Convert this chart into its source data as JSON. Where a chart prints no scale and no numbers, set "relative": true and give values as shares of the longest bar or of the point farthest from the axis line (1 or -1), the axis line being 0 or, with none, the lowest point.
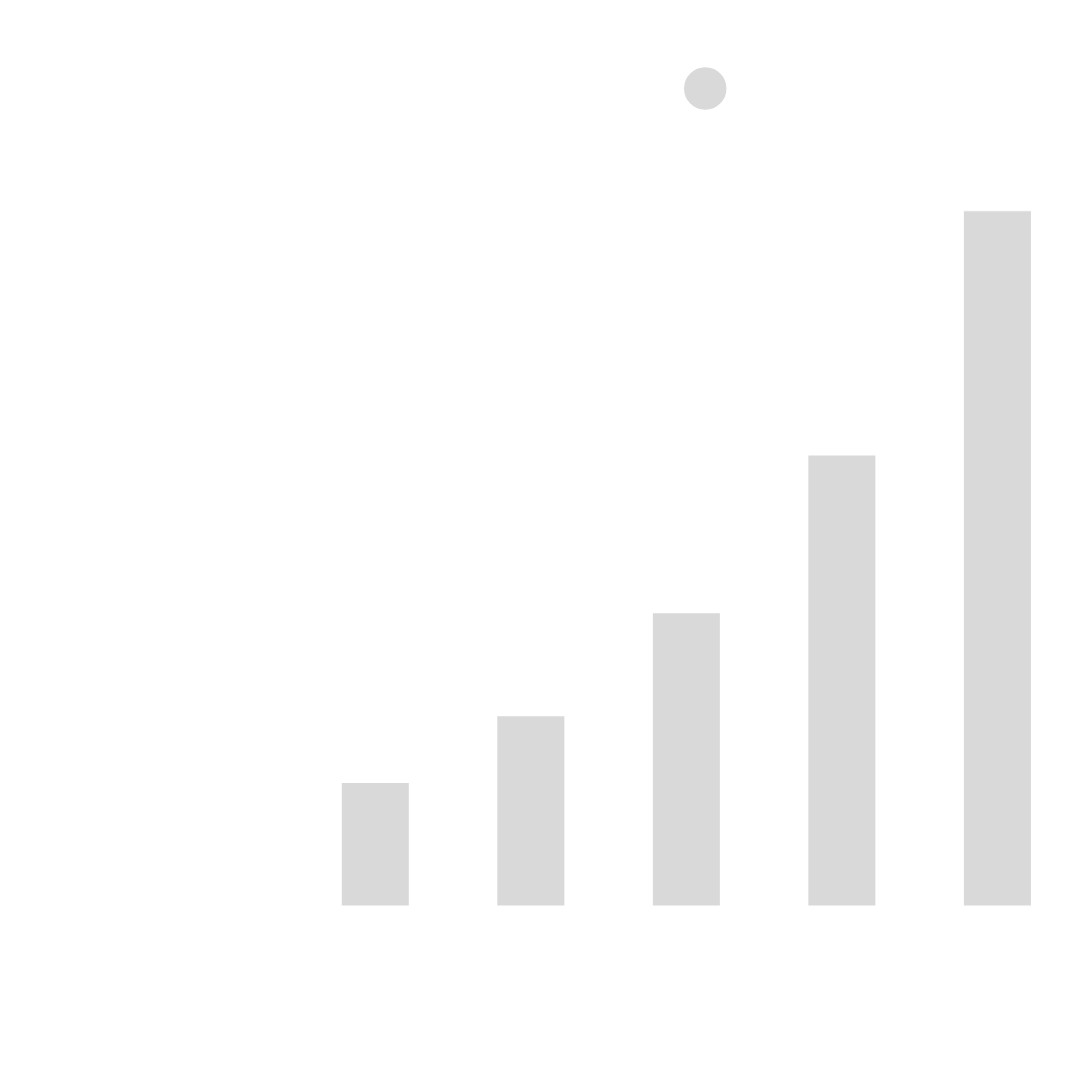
{
  "chart_data": {
    "type": "bar",
    "relative": true,
    "categories": [
      null,
      null,
      null,
      null,
      null
    ],
    "values": [
      0.178,
      0.274,
      0.422,
      0.649,
      1
    ],
    "color": "#d9d9d9"
  }
}
